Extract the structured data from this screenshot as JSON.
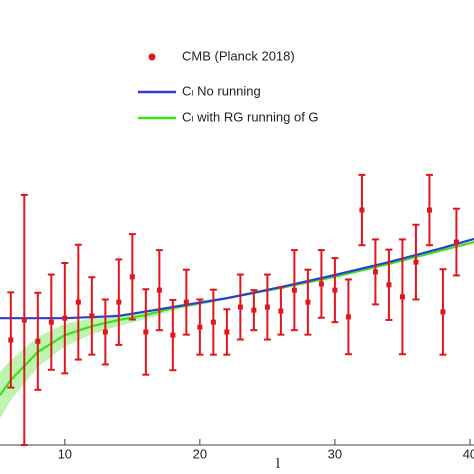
{
  "chart_data": {
    "type": "line",
    "x_label": "l",
    "xlim": [
      5.2,
      40.3
    ],
    "ylim": [
      0,
      100
    ],
    "xticks": [
      10,
      20,
      30,
      40
    ],
    "legend": "top-center",
    "series": [
      {
        "name": "CMB (Planck 2018)",
        "type": "errorbar",
        "color": "#e0161e",
        "x": [
          6,
          7,
          8,
          9,
          10,
          11,
          12,
          13,
          14,
          15,
          16,
          17,
          18,
          19,
          20,
          21,
          22,
          23,
          24,
          25,
          26,
          27,
          28,
          29,
          30,
          31,
          32,
          33,
          34,
          35,
          36,
          37,
          38,
          39
        ],
        "values": [
          23.6,
          28.1,
          23.3,
          27.6,
          28.5,
          32.1,
          29.0,
          25.4,
          32.1,
          37.8,
          25.4,
          34.8,
          24.7,
          32.1,
          26.5,
          27.6,
          25.4,
          31.0,
          30.3,
          31.0,
          30.1,
          34.8,
          32.1,
          36.2,
          34.8,
          28.8,
          52.8,
          38.9,
          36.0,
          33.3,
          41.1,
          52.8,
          29.9,
          45.6
        ],
        "errors": [
          10.7,
          28.1,
          10.9,
          10.7,
          12.4,
          12.9,
          8.7,
          7.3,
          9.6,
          9.6,
          9.6,
          9.0,
          7.9,
          7.3,
          6.2,
          7.3,
          5.1,
          7.3,
          4.5,
          7.3,
          5.3,
          9.0,
          7.3,
          7.6,
          7.2,
          8.4,
          7.9,
          7.3,
          7.9,
          12.9,
          8.4,
          7.9,
          9.6,
          7.5
        ]
      },
      {
        "name": "Cₗ No running",
        "type": "line",
        "color": "#2b3fd0",
        "x": [
          5.2,
          6,
          10,
          14,
          18,
          22,
          26,
          30,
          34,
          38,
          40.3
        ],
        "values": [
          28.5,
          28.5,
          28.5,
          29.0,
          31.0,
          33.0,
          35.5,
          38.2,
          41.1,
          44.3,
          46.3
        ]
      },
      {
        "name": "Cₗ with RG running of G",
        "type": "line",
        "color": "#3ee01e",
        "x": [
          5.2,
          6,
          8,
          10,
          12,
          14,
          16,
          18,
          22,
          26,
          30,
          34,
          38,
          40.3
        ],
        "values": [
          11.2,
          14.6,
          20.9,
          24.7,
          26.7,
          28.1,
          29.2,
          30.8,
          33.0,
          35.3,
          37.8,
          40.7,
          43.8,
          45.6
        ],
        "band": [
          5.2,
          4.5,
          3.4,
          2.5,
          1.8,
          1.3,
          0.9,
          0.6,
          0.3,
          0.2,
          0.2,
          0.2,
          0.2,
          0.2
        ]
      }
    ]
  }
}
